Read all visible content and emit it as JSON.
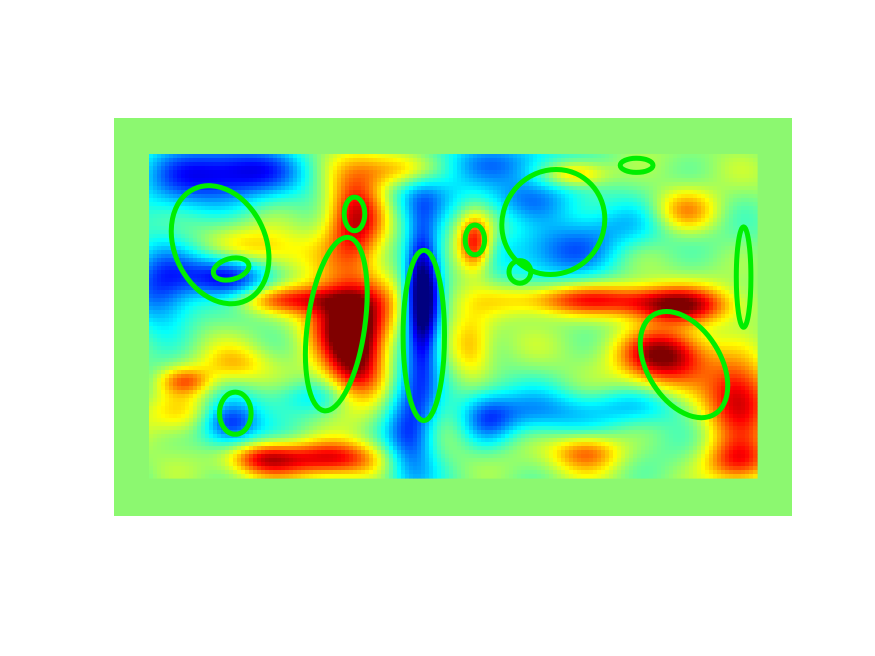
{
  "chart_data": {
    "type": "heatmap",
    "colormap": "jet",
    "title": "",
    "xlabel": "",
    "ylabel": "",
    "grid": false,
    "legend": "none",
    "frame_color": "#8cf870",
    "annotation_color": "#00ee00",
    "peaks": [
      {
        "x": 0.16,
        "y": 0.95,
        "sx": 0.07,
        "sy": 0.06,
        "a": -1.4
      },
      {
        "x": 0.05,
        "y": 0.9,
        "sx": 0.06,
        "sy": 0.08,
        "a": -0.9
      },
      {
        "x": 0.13,
        "y": 0.63,
        "sx": 0.05,
        "sy": 0.05,
        "a": -1.6
      },
      {
        "x": 0.02,
        "y": 0.58,
        "sx": 0.04,
        "sy": 0.1,
        "a": -1.2
      },
      {
        "x": 0.14,
        "y": 0.35,
        "sx": 0.04,
        "sy": 0.04,
        "a": 0.6
      },
      {
        "x": 0.13,
        "y": 0.17,
        "sx": 0.035,
        "sy": 0.05,
        "a": -1.5
      },
      {
        "x": 0.06,
        "y": 0.3,
        "sx": 0.03,
        "sy": 0.03,
        "a": 1.0
      },
      {
        "x": 0.18,
        "y": 0.7,
        "sx": 0.06,
        "sy": 0.05,
        "a": 0.8
      },
      {
        "x": 0.34,
        "y": 0.8,
        "sx": 0.035,
        "sy": 0.1,
        "a": 1.9
      },
      {
        "x": 0.32,
        "y": 0.5,
        "sx": 0.05,
        "sy": 0.08,
        "a": 1.7
      },
      {
        "x": 0.34,
        "y": 0.38,
        "sx": 0.035,
        "sy": 0.1,
        "a": 2.0
      },
      {
        "x": 0.23,
        "y": 0.55,
        "sx": 0.07,
        "sy": 0.03,
        "a": 1.1
      },
      {
        "x": 0.3,
        "y": 0.06,
        "sx": 0.06,
        "sy": 0.04,
        "a": 1.7
      },
      {
        "x": 0.19,
        "y": 0.06,
        "sx": 0.04,
        "sy": 0.035,
        "a": 1.4
      },
      {
        "x": 0.45,
        "y": 0.55,
        "sx": 0.02,
        "sy": 0.15,
        "a": -2.5
      },
      {
        "x": 0.43,
        "y": 0.15,
        "sx": 0.03,
        "sy": 0.12,
        "a": -1.4
      },
      {
        "x": 0.45,
        "y": 0.88,
        "sx": 0.05,
        "sy": 0.06,
        "a": -0.9
      },
      {
        "x": 0.535,
        "y": 0.72,
        "sx": 0.02,
        "sy": 0.06,
        "a": 1.7
      },
      {
        "x": 0.53,
        "y": 0.4,
        "sx": 0.025,
        "sy": 0.07,
        "a": 0.8
      },
      {
        "x": 0.555,
        "y": 0.18,
        "sx": 0.03,
        "sy": 0.06,
        "a": -0.8
      },
      {
        "x": 0.58,
        "y": 0.97,
        "sx": 0.09,
        "sy": 0.05,
        "a": -0.8
      },
      {
        "x": 0.68,
        "y": 0.7,
        "sx": 0.07,
        "sy": 0.06,
        "a": -1.1
      },
      {
        "x": 0.62,
        "y": 0.86,
        "sx": 0.06,
        "sy": 0.05,
        "a": -0.9
      },
      {
        "x": 0.7,
        "y": 0.94,
        "sx": 0.04,
        "sy": 0.03,
        "a": 1.2
      },
      {
        "x": 0.78,
        "y": 0.78,
        "sx": 0.08,
        "sy": 0.05,
        "a": -0.6
      },
      {
        "x": 0.72,
        "y": 0.55,
        "sx": 0.1,
        "sy": 0.035,
        "a": 1.4
      },
      {
        "x": 0.87,
        "y": 0.53,
        "sx": 0.06,
        "sy": 0.04,
        "a": 1.6
      },
      {
        "x": 0.85,
        "y": 0.38,
        "sx": 0.05,
        "sy": 0.06,
        "a": 2.1
      },
      {
        "x": 0.88,
        "y": 0.82,
        "sx": 0.04,
        "sy": 0.05,
        "a": 1.1
      },
      {
        "x": 0.97,
        "y": 0.25,
        "sx": 0.04,
        "sy": 0.09,
        "a": 1.7
      },
      {
        "x": 0.97,
        "y": 0.05,
        "sx": 0.04,
        "sy": 0.05,
        "a": 1.5
      },
      {
        "x": 0.72,
        "y": 0.08,
        "sx": 0.04,
        "sy": 0.04,
        "a": 1.1
      },
      {
        "x": 0.63,
        "y": 0.2,
        "sx": 0.07,
        "sy": 0.05,
        "a": -0.8
      },
      {
        "x": 0.8,
        "y": 0.22,
        "sx": 0.06,
        "sy": 0.04,
        "a": -0.6
      },
      {
        "x": 0.06,
        "y": 0.2,
        "sx": 0.05,
        "sy": 0.05,
        "a": 0.8
      },
      {
        "x": 0.27,
        "y": 0.25,
        "sx": 0.06,
        "sy": 0.04,
        "a": -0.6
      },
      {
        "x": 0.41,
        "y": 0.95,
        "sx": 0.05,
        "sy": 0.04,
        "a": 1.0
      }
    ],
    "ellipses": [
      {
        "cx": 0.117,
        "cy": 0.72,
        "rx": 0.075,
        "ry": 0.19,
        "rot": -25
      },
      {
        "cx": 0.135,
        "cy": 0.645,
        "rx": 0.03,
        "ry": 0.032,
        "rot": -15
      },
      {
        "cx": 0.142,
        "cy": 0.2,
        "rx": 0.026,
        "ry": 0.065,
        "rot": 0
      },
      {
        "cx": 0.338,
        "cy": 0.815,
        "rx": 0.017,
        "ry": 0.052,
        "rot": 0
      },
      {
        "cx": 0.308,
        "cy": 0.475,
        "rx": 0.047,
        "ry": 0.27,
        "rot": 8
      },
      {
        "cx": 0.452,
        "cy": 0.44,
        "rx": 0.034,
        "ry": 0.263,
        "rot": 0
      },
      {
        "cx": 0.536,
        "cy": 0.735,
        "rx": 0.016,
        "ry": 0.046,
        "rot": 0
      },
      {
        "cx": 0.665,
        "cy": 0.79,
        "rx": 0.083,
        "ry": 0.165,
        "rot": 35
      },
      {
        "cx": 0.61,
        "cy": 0.636,
        "rx": 0.018,
        "ry": 0.035,
        "rot": 0
      },
      {
        "cx": 0.802,
        "cy": 0.965,
        "rx": 0.027,
        "ry": 0.022,
        "rot": 0
      },
      {
        "cx": 0.88,
        "cy": 0.35,
        "rx": 0.06,
        "ry": 0.18,
        "rot": -32
      },
      {
        "cx": 0.978,
        "cy": 0.62,
        "rx": 0.012,
        "ry": 0.155,
        "rot": 0
      }
    ]
  }
}
